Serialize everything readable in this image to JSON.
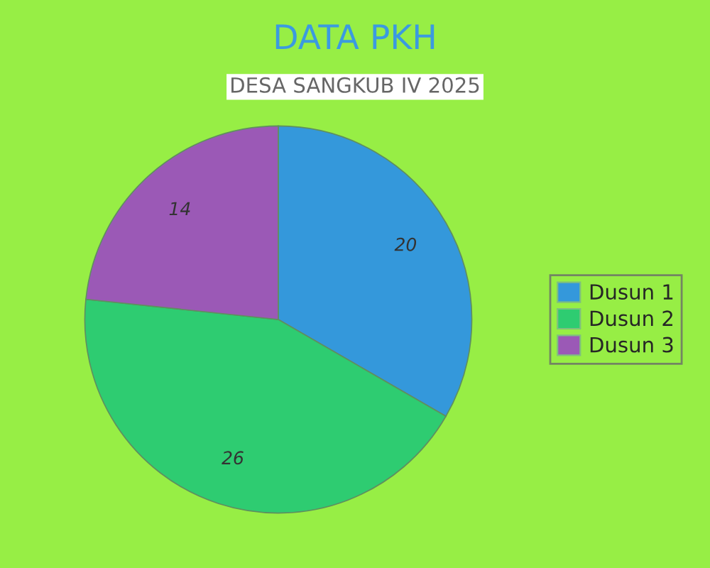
{
  "chart_data": {
    "type": "pie",
    "title": "DATA PKH",
    "subtitle": "DESA SANGKUB IV 2025",
    "categories": [
      "Dusun 1",
      "Dusun 2",
      "Dusun 3"
    ],
    "values": [
      20,
      26,
      14
    ],
    "colors": [
      "#3498db",
      "#2ecc71",
      "#9b59b6"
    ],
    "data_labels": true,
    "legend": "right"
  }
}
